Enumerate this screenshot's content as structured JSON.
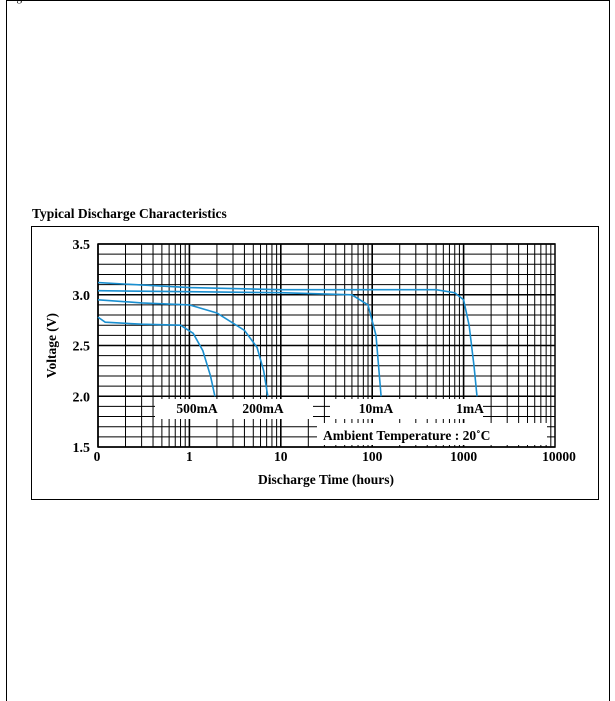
{
  "page": {
    "header_fragment": "ng"
  },
  "section_title": "Typical Discharge Characteristics",
  "chart_data": {
    "type": "line",
    "title": "",
    "xlabel": "Discharge Time (hours)",
    "ylabel": "Voltage (V)",
    "xscale": "log",
    "x_tick_labels": [
      "0",
      "1",
      "10",
      "100",
      "1000",
      "10000"
    ],
    "y_tick_labels": [
      "3.5",
      "3.0",
      "2.5",
      "2.0",
      "1.5"
    ],
    "y_ticks": [
      3.5,
      3.0,
      2.5,
      2.0,
      1.5
    ],
    "ylim": [
      1.5,
      3.5
    ],
    "grid": true,
    "line_color": "#1a8fd0",
    "annotation": "Ambient Temperature : 20˚C",
    "series": [
      {
        "name": "500mA",
        "points": [
          [
            0.1,
            2.78
          ],
          [
            0.12,
            2.73
          ],
          [
            0.3,
            2.71
          ],
          [
            0.8,
            2.7
          ],
          [
            1.1,
            2.62
          ],
          [
            1.4,
            2.45
          ],
          [
            1.7,
            2.2
          ],
          [
            1.9,
            2.0
          ]
        ]
      },
      {
        "name": "200mA",
        "points": [
          [
            0.1,
            2.95
          ],
          [
            0.3,
            2.92
          ],
          [
            1.0,
            2.9
          ],
          [
            2.0,
            2.82
          ],
          [
            4.0,
            2.65
          ],
          [
            5.5,
            2.48
          ],
          [
            6.5,
            2.25
          ],
          [
            7.2,
            2.0
          ]
        ]
      },
      {
        "name": "10mA",
        "points": [
          [
            0.1,
            3.04
          ],
          [
            1.0,
            3.03
          ],
          [
            10,
            3.02
          ],
          [
            60,
            3.0
          ],
          [
            90,
            2.9
          ],
          [
            110,
            2.6
          ],
          [
            125,
            2.0
          ]
        ]
      },
      {
        "name": "1mA",
        "points": [
          [
            0.1,
            3.12
          ],
          [
            1.0,
            3.07
          ],
          [
            10,
            3.05
          ],
          [
            100,
            3.05
          ],
          [
            500,
            3.05
          ],
          [
            800,
            3.02
          ],
          [
            1000,
            2.95
          ],
          [
            1150,
            2.7
          ],
          [
            1300,
            2.3
          ],
          [
            1400,
            2.0
          ]
        ]
      }
    ]
  }
}
